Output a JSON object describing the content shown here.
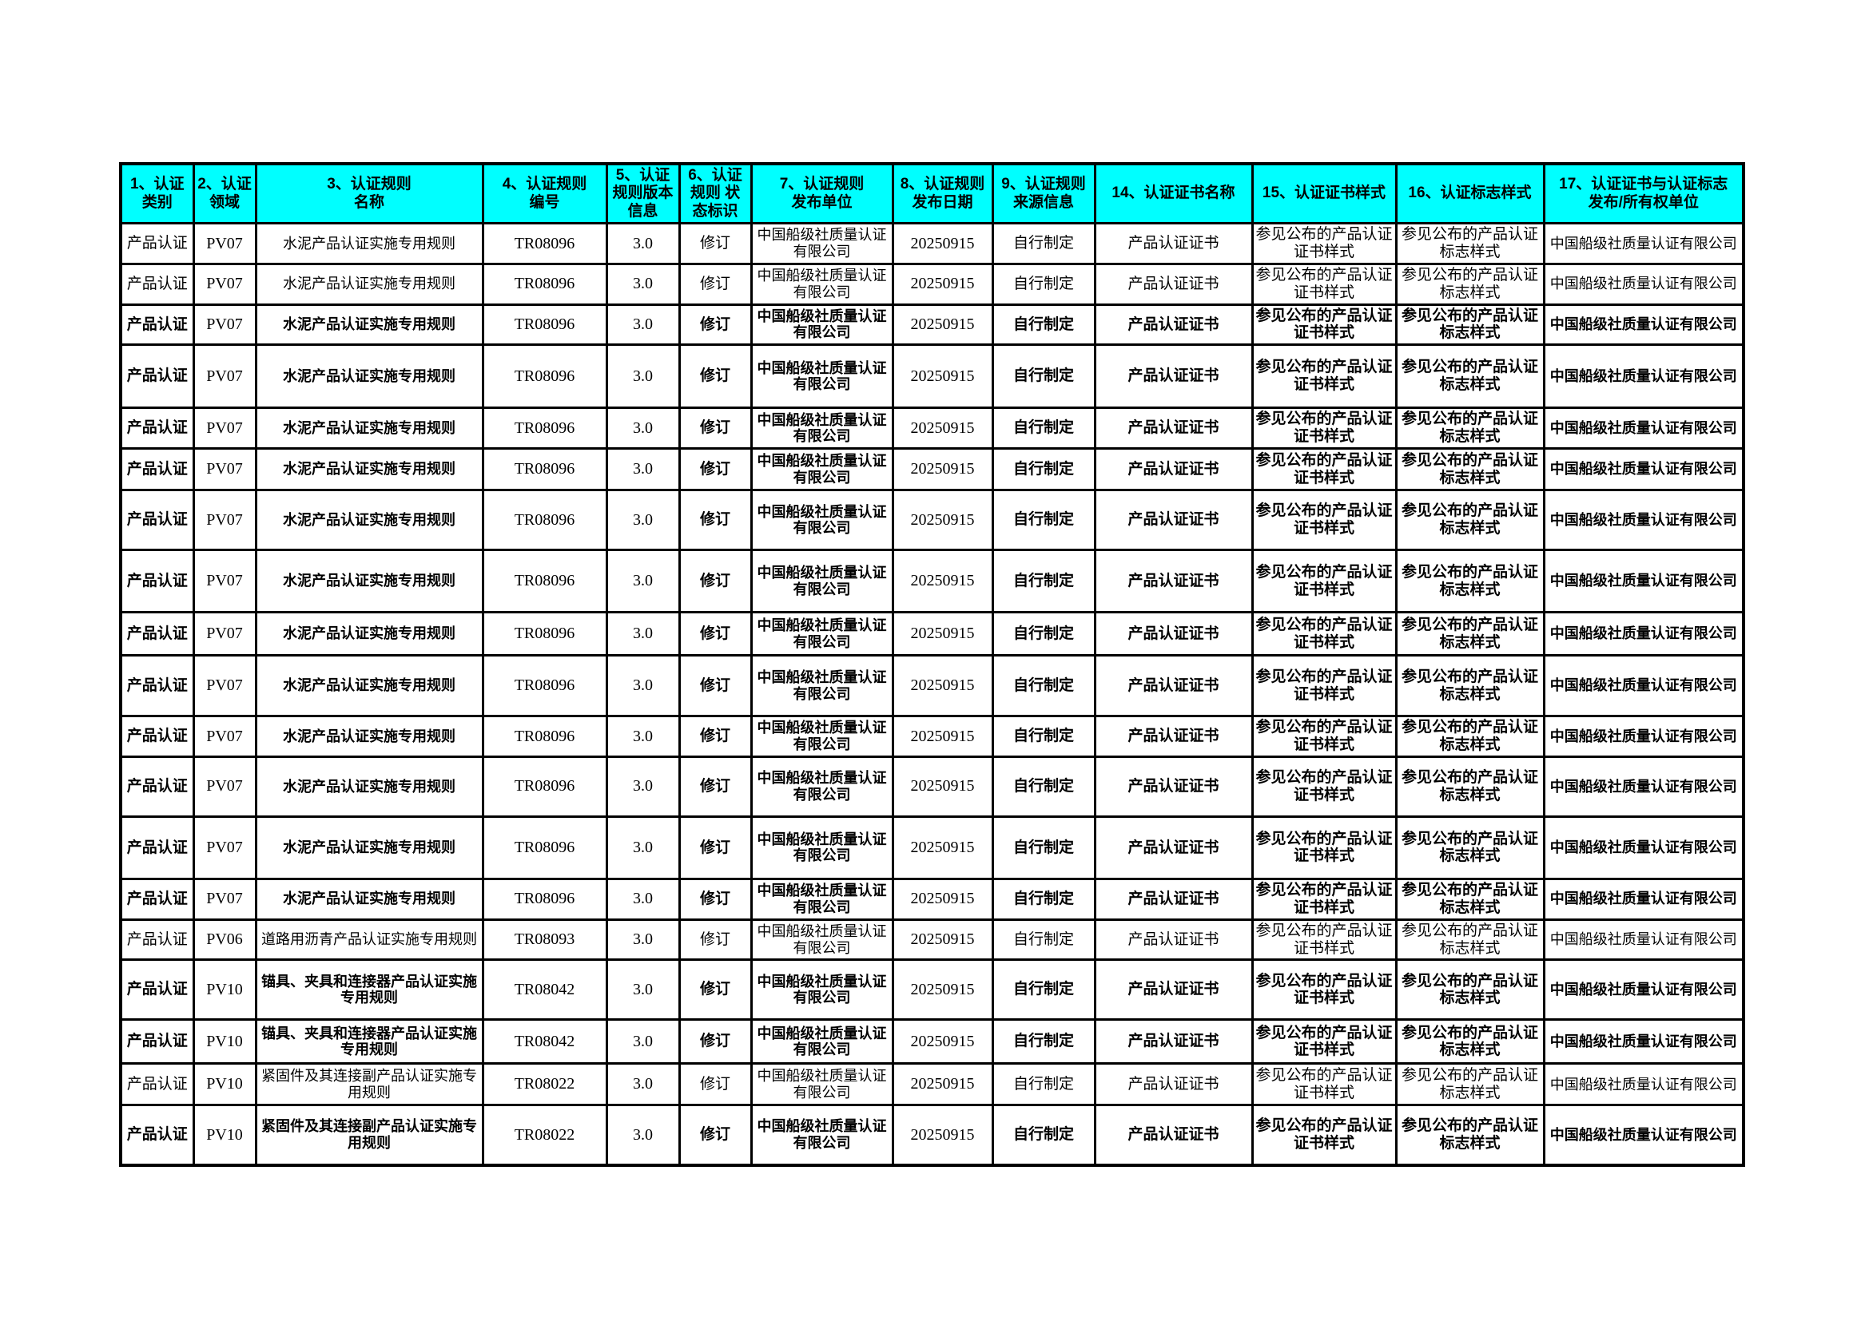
{
  "styles": {
    "header_background": "#00ffff",
    "border_color": "#000000",
    "text_color": "#000000",
    "page_background": "#ffffff"
  },
  "header": {
    "columns": [
      {
        "key": "category",
        "label": "1、认证类别"
      },
      {
        "key": "field",
        "label": "2、认证领域"
      },
      {
        "key": "rule_name",
        "label": "3、认证规则\n名称"
      },
      {
        "key": "rule_no",
        "label": "4、认证规则\n编号"
      },
      {
        "key": "version",
        "label": "5、认证规则版本信息"
      },
      {
        "key": "status",
        "label": "6、认证规则 状态标识"
      },
      {
        "key": "publisher",
        "label": "7、认证规则\n发布单位"
      },
      {
        "key": "publish_date",
        "label": "8、认证规则\n发布日期"
      },
      {
        "key": "source",
        "label": "9、认证规则\n来源信息"
      },
      {
        "key": "cert_name",
        "label": "14、认证证书名称"
      },
      {
        "key": "cert_style",
        "label": "15、认证证书样式"
      },
      {
        "key": "mark_style",
        "label": "16、认证标志样式"
      },
      {
        "key": "owner",
        "label": "17、认证证书与认证标志\n发布/所有权单位"
      }
    ]
  },
  "rows": [
    {
      "light": true,
      "category": "产品认证",
      "field": "PV07",
      "rule_name": "水泥产品认证实施专用规则",
      "rule_no": "TR08096",
      "version": "3.0",
      "status": "修订",
      "publisher": "中国船级社质量认证有限公司",
      "publish_date": "20250915",
      "source": "自行制定",
      "cert_name": "产品认证证书",
      "cert_style": "参见公布的产品认证证书样式",
      "mark_style": "参见公布的产品认证标志样式",
      "owner": "中国船级社质量认证有限公司"
    },
    {
      "light": true,
      "category": "产品认证",
      "field": "PV07",
      "rule_name": "水泥产品认证实施专用规则",
      "rule_no": "TR08096",
      "version": "3.0",
      "status": "修订",
      "publisher": "中国船级社质量认证有限公司",
      "publish_date": "20250915",
      "source": "自行制定",
      "cert_name": "产品认证证书",
      "cert_style": "参见公布的产品认证证书样式",
      "mark_style": "参见公布的产品认证标志样式",
      "owner": "中国船级社质量认证有限公司"
    },
    {
      "light": false,
      "category": "产品认证",
      "field": "PV07",
      "rule_name": "水泥产品认证实施专用规则",
      "rule_no": "TR08096",
      "version": "3.0",
      "status": "修订",
      "publisher": "中国船级社质量认证有限公司",
      "publish_date": "20250915",
      "source": "自行制定",
      "cert_name": "产品认证证书",
      "cert_style": "参见公布的产品认证证书样式",
      "mark_style": "参见公布的产品认证标志样式",
      "owner": "中国船级社质量认证有限公司"
    },
    {
      "light": false,
      "category": "产品认证",
      "field": "PV07",
      "rule_name": "水泥产品认证实施专用规则",
      "rule_no": "TR08096",
      "version": "3.0",
      "status": "修订",
      "publisher": "中国船级社质量认证有限公司",
      "publish_date": "20250915",
      "source": "自行制定",
      "cert_name": "产品认证证书",
      "cert_style": "参见公布的产品认证证书样式",
      "mark_style": "参见公布的产品认证标志样式",
      "owner": "中国船级社质量认证有限公司"
    },
    {
      "light": false,
      "category": "产品认证",
      "field": "PV07",
      "rule_name": "水泥产品认证实施专用规则",
      "rule_no": "TR08096",
      "version": "3.0",
      "status": "修订",
      "publisher": "中国船级社质量认证有限公司",
      "publish_date": "20250915",
      "source": "自行制定",
      "cert_name": "产品认证证书",
      "cert_style": "参见公布的产品认证证书样式",
      "mark_style": "参见公布的产品认证标志样式",
      "owner": "中国船级社质量认证有限公司"
    },
    {
      "light": false,
      "category": "产品认证",
      "field": "PV07",
      "rule_name": "水泥产品认证实施专用规则",
      "rule_no": "TR08096",
      "version": "3.0",
      "status": "修订",
      "publisher": "中国船级社质量认证有限公司",
      "publish_date": "20250915",
      "source": "自行制定",
      "cert_name": "产品认证证书",
      "cert_style": "参见公布的产品认证证书样式",
      "mark_style": "参见公布的产品认证标志样式",
      "owner": "中国船级社质量认证有限公司"
    },
    {
      "light": false,
      "category": "产品认证",
      "field": "PV07",
      "rule_name": "水泥产品认证实施专用规则",
      "rule_no": "TR08096",
      "version": "3.0",
      "status": "修订",
      "publisher": "中国船级社质量认证有限公司",
      "publish_date": "20250915",
      "source": "自行制定",
      "cert_name": "产品认证证书",
      "cert_style": "参见公布的产品认证证书样式",
      "mark_style": "参见公布的产品认证标志样式",
      "owner": "中国船级社质量认证有限公司"
    },
    {
      "light": false,
      "category": "产品认证",
      "field": "PV07",
      "rule_name": "水泥产品认证实施专用规则",
      "rule_no": "TR08096",
      "version": "3.0",
      "status": "修订",
      "publisher": "中国船级社质量认证有限公司",
      "publish_date": "20250915",
      "source": "自行制定",
      "cert_name": "产品认证证书",
      "cert_style": "参见公布的产品认证证书样式",
      "mark_style": "参见公布的产品认证标志样式",
      "owner": "中国船级社质量认证有限公司"
    },
    {
      "light": false,
      "category": "产品认证",
      "field": "PV07",
      "rule_name": "水泥产品认证实施专用规则",
      "rule_no": "TR08096",
      "version": "3.0",
      "status": "修订",
      "publisher": "中国船级社质量认证有限公司",
      "publish_date": "20250915",
      "source": "自行制定",
      "cert_name": "产品认证证书",
      "cert_style": "参见公布的产品认证证书样式",
      "mark_style": "参见公布的产品认证标志样式",
      "owner": "中国船级社质量认证有限公司"
    },
    {
      "light": false,
      "category": "产品认证",
      "field": "PV07",
      "rule_name": "水泥产品认证实施专用规则",
      "rule_no": "TR08096",
      "version": "3.0",
      "status": "修订",
      "publisher": "中国船级社质量认证有限公司",
      "publish_date": "20250915",
      "source": "自行制定",
      "cert_name": "产品认证证书",
      "cert_style": "参见公布的产品认证证书样式",
      "mark_style": "参见公布的产品认证标志样式",
      "owner": "中国船级社质量认证有限公司"
    },
    {
      "light": false,
      "category": "产品认证",
      "field": "PV07",
      "rule_name": "水泥产品认证实施专用规则",
      "rule_no": "TR08096",
      "version": "3.0",
      "status": "修订",
      "publisher": "中国船级社质量认证有限公司",
      "publish_date": "20250915",
      "source": "自行制定",
      "cert_name": "产品认证证书",
      "cert_style": "参见公布的产品认证证书样式",
      "mark_style": "参见公布的产品认证标志样式",
      "owner": "中国船级社质量认证有限公司"
    },
    {
      "light": false,
      "category": "产品认证",
      "field": "PV07",
      "rule_name": "水泥产品认证实施专用规则",
      "rule_no": "TR08096",
      "version": "3.0",
      "status": "修订",
      "publisher": "中国船级社质量认证有限公司",
      "publish_date": "20250915",
      "source": "自行制定",
      "cert_name": "产品认证证书",
      "cert_style": "参见公布的产品认证证书样式",
      "mark_style": "参见公布的产品认证标志样式",
      "owner": "中国船级社质量认证有限公司"
    },
    {
      "light": false,
      "category": "产品认证",
      "field": "PV07",
      "rule_name": "水泥产品认证实施专用规则",
      "rule_no": "TR08096",
      "version": "3.0",
      "status": "修订",
      "publisher": "中国船级社质量认证有限公司",
      "publish_date": "20250915",
      "source": "自行制定",
      "cert_name": "产品认证证书",
      "cert_style": "参见公布的产品认证证书样式",
      "mark_style": "参见公布的产品认证标志样式",
      "owner": "中国船级社质量认证有限公司"
    },
    {
      "light": false,
      "category": "产品认证",
      "field": "PV07",
      "rule_name": "水泥产品认证实施专用规则",
      "rule_no": "TR08096",
      "version": "3.0",
      "status": "修订",
      "publisher": "中国船级社质量认证有限公司",
      "publish_date": "20250915",
      "source": "自行制定",
      "cert_name": "产品认证证书",
      "cert_style": "参见公布的产品认证证书样式",
      "mark_style": "参见公布的产品认证标志样式",
      "owner": "中国船级社质量认证有限公司"
    },
    {
      "light": true,
      "category": "产品认证",
      "field": "PV06",
      "rule_name": "道路用沥青产品认证实施专用规则",
      "rule_no": "TR08093",
      "version": "3.0",
      "status": "修订",
      "publisher": "中国船级社质量认证有限公司",
      "publish_date": "20250915",
      "source": "自行制定",
      "cert_name": "产品认证证书",
      "cert_style": "参见公布的产品认证证书样式",
      "mark_style": "参见公布的产品认证标志样式",
      "owner": "中国船级社质量认证有限公司"
    },
    {
      "light": false,
      "category": "产品认证",
      "field": "PV10",
      "rule_name": "锚具、夹具和连接器产品认证实施专用规则",
      "rule_no": "TR08042",
      "version": "3.0",
      "status": "修订",
      "publisher": "中国船级社质量认证有限公司",
      "publish_date": "20250915",
      "source": "自行制定",
      "cert_name": "产品认证证书",
      "cert_style": "参见公布的产品认证证书样式",
      "mark_style": "参见公布的产品认证标志样式",
      "owner": "中国船级社质量认证有限公司"
    },
    {
      "light": false,
      "category": "产品认证",
      "field": "PV10",
      "rule_name": "锚具、夹具和连接器产品认证实施专用规则",
      "rule_no": "TR08042",
      "version": "3.0",
      "status": "修订",
      "publisher": "中国船级社质量认证有限公司",
      "publish_date": "20250915",
      "source": "自行制定",
      "cert_name": "产品认证证书",
      "cert_style": "参见公布的产品认证证书样式",
      "mark_style": "参见公布的产品认证标志样式",
      "owner": "中国船级社质量认证有限公司"
    },
    {
      "light": true,
      "category": "产品认证",
      "field": "PV10",
      "rule_name": "紧固件及其连接副产品认证实施专用规则",
      "rule_no": "TR08022",
      "version": "3.0",
      "status": "修订",
      "publisher": "中国船级社质量认证有限公司",
      "publish_date": "20250915",
      "source": "自行制定",
      "cert_name": "产品认证证书",
      "cert_style": "参见公布的产品认证证书样式",
      "mark_style": "参见公布的产品认证标志样式",
      "owner": "中国船级社质量认证有限公司"
    },
    {
      "light": false,
      "category": "产品认证",
      "field": "PV10",
      "rule_name": "紧固件及其连接副产品认证实施专用规则",
      "rule_no": "TR08022",
      "version": "3.0",
      "status": "修订",
      "publisher": "中国船级社质量认证有限公司",
      "publish_date": "20250915",
      "source": "自行制定",
      "cert_name": "产品认证证书",
      "cert_style": "参见公布的产品认证证书样式",
      "mark_style": "参见公布的产品认证标志样式",
      "owner": "中国船级社质量认证有限公司"
    }
  ]
}
